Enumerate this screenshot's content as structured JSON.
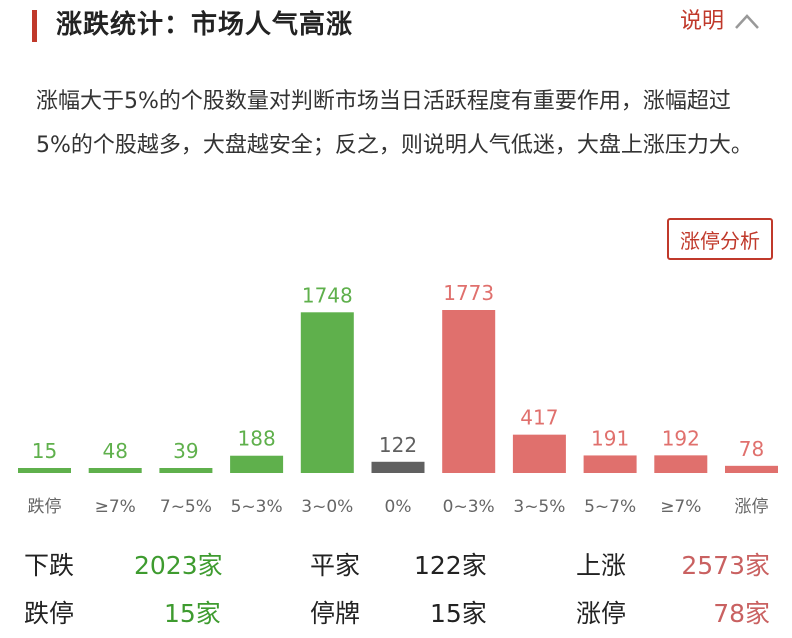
{
  "header": {
    "title": "涨跌统计：市场人气高涨",
    "explain_label": "说明"
  },
  "description": "涨幅大于5%的个股数量对判断市场当日活跃程度有重要作用，涨幅超过5%的个股越多，大盘越安全；反之，则说明人气低迷，大盘上涨压力大。",
  "limit_button_label": "涨停分析",
  "colors": {
    "accent": "#c0392b",
    "down": "#5fb04c",
    "flat": "#606060",
    "up": "#e0706d"
  },
  "chart_data": {
    "type": "bar",
    "categories": [
      "跌停",
      "≥7%",
      "7~5%",
      "5~3%",
      "3~0%",
      "0%",
      "0~3%",
      "3~5%",
      "5~7%",
      "≥7%",
      "涨停"
    ],
    "values": [
      15,
      48,
      39,
      188,
      1748,
      122,
      1773,
      417,
      191,
      192,
      78
    ],
    "groups": [
      "down",
      "down",
      "down",
      "down",
      "down",
      "flat",
      "up",
      "up",
      "up",
      "up",
      "up"
    ],
    "title": "",
    "xlabel": "",
    "ylabel": "",
    "ylim": [
      0,
      1773
    ],
    "grid": false,
    "legend": "none"
  },
  "stats": {
    "down_label": "下跌",
    "down_value": "2023家",
    "flat_label": "平家",
    "flat_value": "122家",
    "up_label": "上涨",
    "up_value": "2573家",
    "limit_down_label": "跌停",
    "limit_down_value": "15家",
    "suspended_label": "停牌",
    "suspended_value": "15家",
    "limit_up_label": "涨停",
    "limit_up_value": "78家"
  }
}
